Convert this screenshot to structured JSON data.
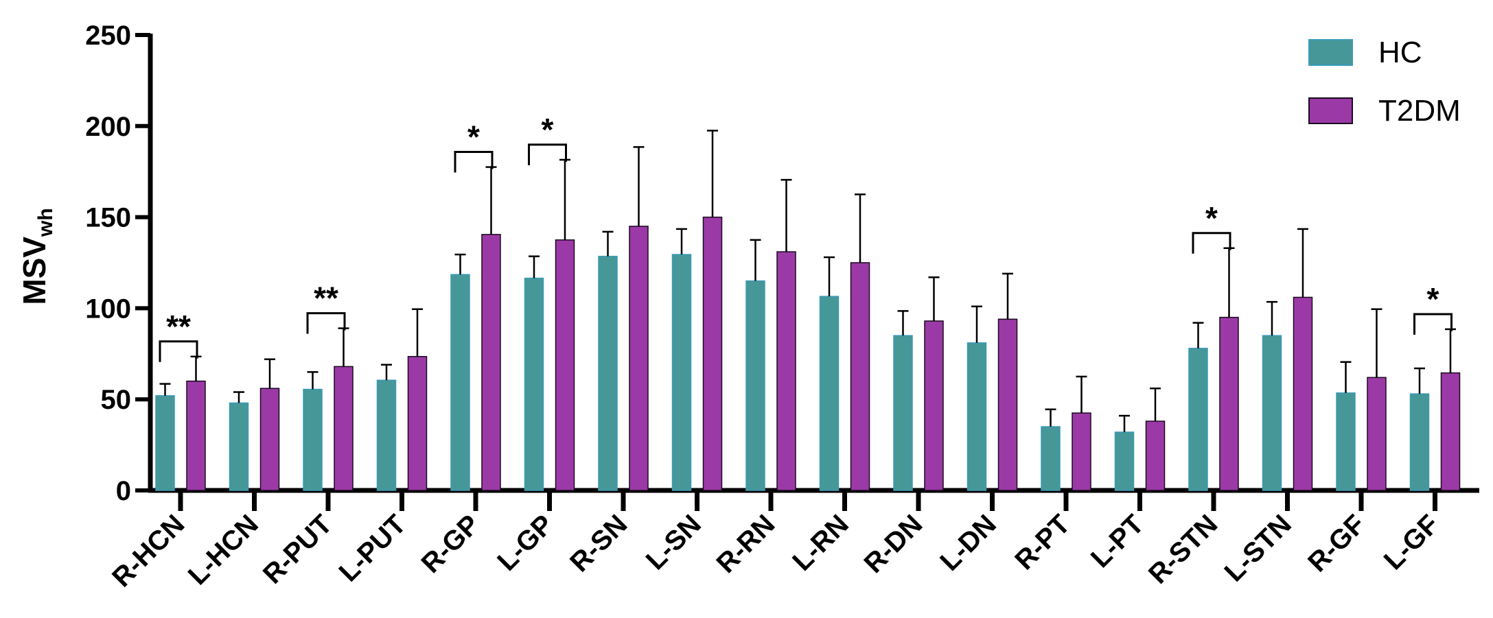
{
  "chart_data": {
    "type": "bar",
    "title": "",
    "xlabel": "",
    "ylabel": "MSV",
    "ylabel_sub": "wh",
    "ylim": [
      0,
      250
    ],
    "yticks": [
      "0",
      "50",
      "100",
      "150",
      "200",
      "250"
    ],
    "ytick_values": [
      0,
      50,
      100,
      150,
      200,
      250
    ],
    "grid": false,
    "legend_position": "top-right",
    "categories": [
      "R-HCN",
      "L-HCN",
      "R-PUT",
      "L-PUT",
      "R-GP",
      "L-GP",
      "R-SN",
      "L-SN",
      "R-RN",
      "L-RN",
      "R-DN",
      "L-DN",
      "R-PT",
      "L-PT",
      "R-STN",
      "L-STN",
      "R-GF",
      "L-GF"
    ],
    "series": [
      {
        "name": "HC",
        "color": "#469797",
        "values": [
          52,
          48,
          55.5,
          60.5,
          118.5,
          116.5,
          128.5,
          129.5,
          115,
          106.5,
          85,
          81,
          35,
          32,
          78,
          85,
          53.5,
          53
        ],
        "errors": [
          6.5,
          6,
          9.5,
          8.5,
          11,
          12,
          13.5,
          14,
          22.5,
          21.5,
          13.5,
          20,
          9.5,
          9,
          14,
          18.5,
          17,
          14
        ]
      },
      {
        "name": "T2DM",
        "color": "#9b3aa6",
        "values": [
          60,
          56,
          68,
          73.5,
          140.5,
          137.5,
          145,
          150,
          131,
          125,
          93,
          94,
          42.5,
          38,
          95,
          106,
          62,
          64.5
        ],
        "errors": [
          13.5,
          16,
          21,
          26,
          37,
          44,
          43.5,
          47.5,
          39.5,
          37.5,
          24,
          25,
          20,
          18,
          38,
          37.5,
          37.5,
          24
        ]
      }
    ],
    "annotations": [
      {
        "category": "R-HCN",
        "text": "**"
      },
      {
        "category": "R-PUT",
        "text": "**"
      },
      {
        "category": "R-GP",
        "text": "*"
      },
      {
        "category": "L-GP",
        "text": "*"
      },
      {
        "category": "R-STN",
        "text": "*"
      },
      {
        "category": "L-GF",
        "text": "*"
      }
    ]
  }
}
